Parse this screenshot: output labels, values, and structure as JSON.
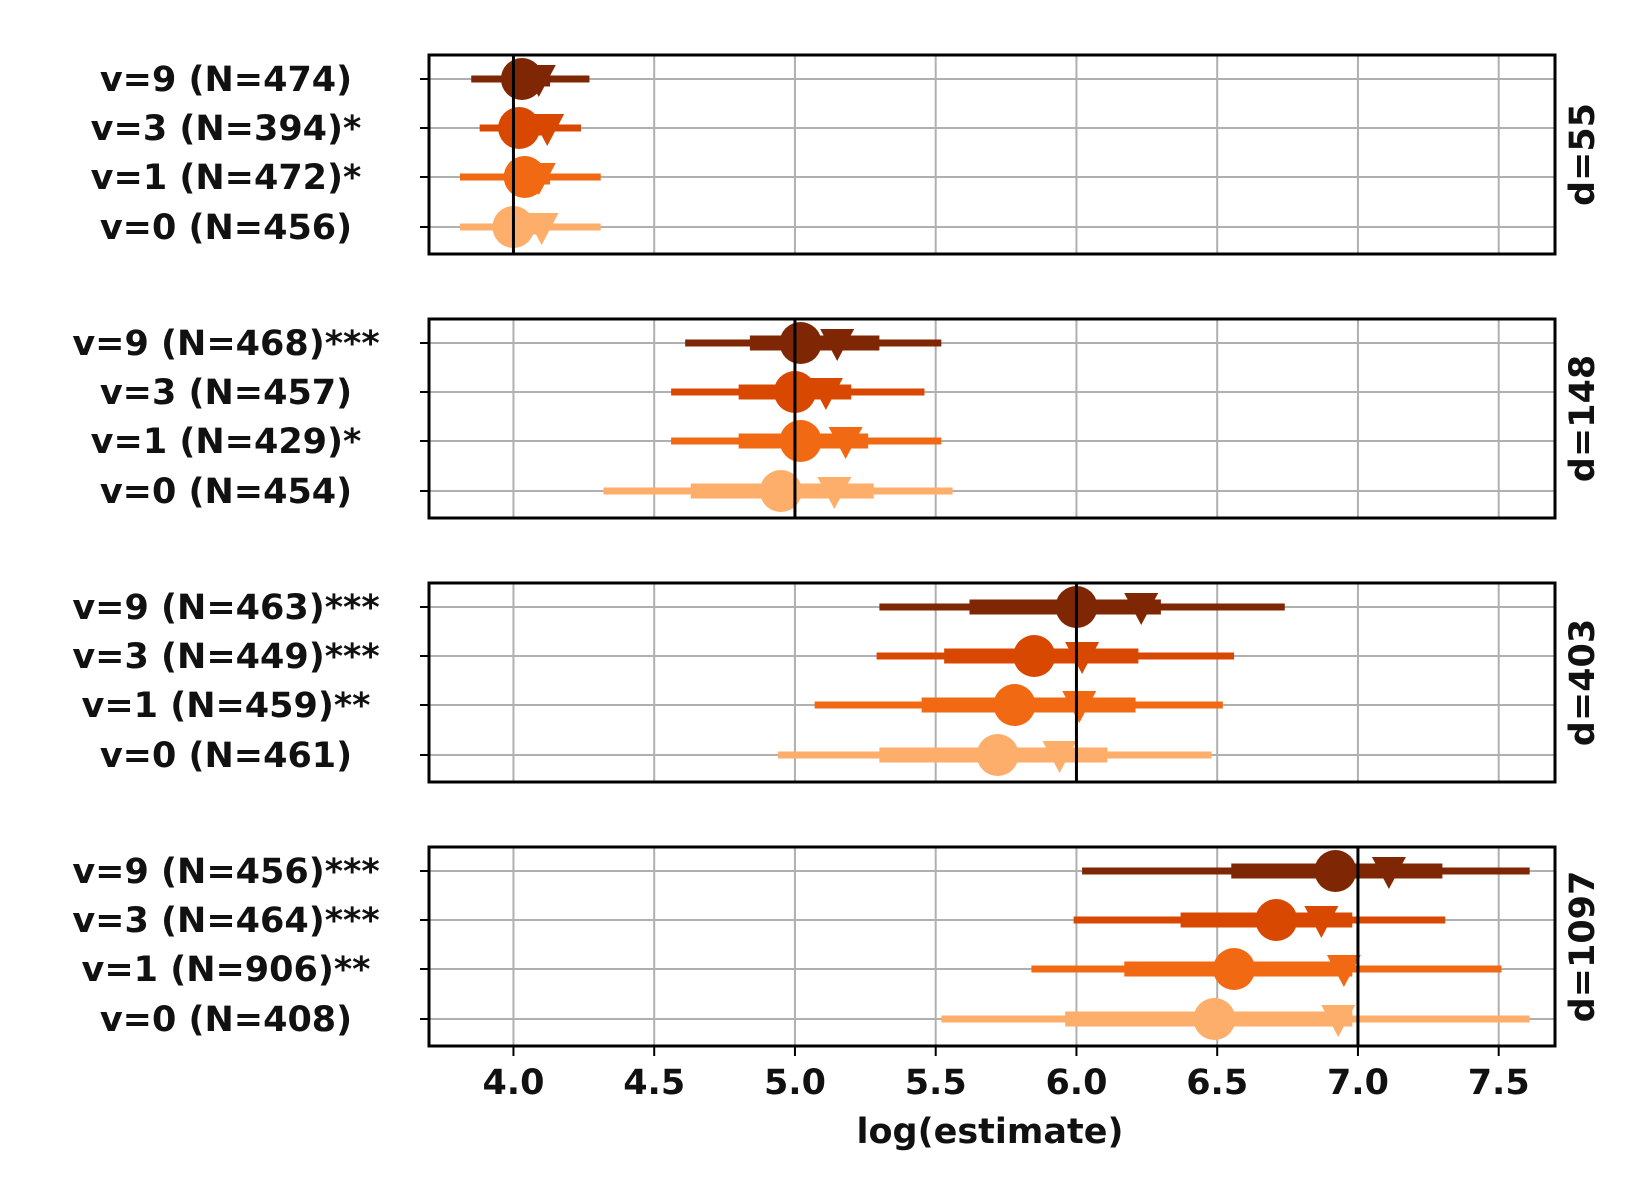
{
  "chart_data": {
    "type": "forest",
    "xlabel": "log(estimate)",
    "xlim": [
      3.7,
      7.7
    ],
    "xticks": [
      "4.0",
      "4.5",
      "5.0",
      "5.5",
      "6.0",
      "6.5",
      "7.0",
      "7.5"
    ],
    "grid": true,
    "colors": {
      "v9": "#7f2704",
      "v3": "#d94801",
      "v1": "#f16913",
      "v0": "#fdae6b"
    },
    "panels": [
      {
        "label": "d=55",
        "reference": 4.0,
        "rows": [
          {
            "label": "v=9 (N=474)",
            "color": "#7f2704",
            "circle": 4.03,
            "triangle": 4.09,
            "ci50": [
              3.98,
              4.13
            ],
            "ci95": [
              3.85,
              4.27
            ]
          },
          {
            "label": "v=3 (N=394)*",
            "color": "#d94801",
            "circle": 4.02,
            "triangle": 4.12,
            "ci50": [
              3.97,
              4.12
            ],
            "ci95": [
              3.88,
              4.24
            ]
          },
          {
            "label": "v=1 (N=472)*",
            "color": "#f16913",
            "circle": 4.04,
            "triangle": 4.09,
            "ci50": [
              3.97,
              4.13
            ],
            "ci95": [
              3.81,
              4.31
            ]
          },
          {
            "label": "v=0 (N=456)",
            "color": "#fdae6b",
            "circle": 4.0,
            "triangle": 4.1,
            "ci50": [
              3.94,
              4.1
            ],
            "ci95": [
              3.81,
              4.31
            ]
          }
        ]
      },
      {
        "label": "d=148",
        "reference": 5.0,
        "rows": [
          {
            "label": "v=9 (N=468)***",
            "color": "#7f2704",
            "circle": 5.02,
            "triangle": 5.15,
            "ci50": [
              4.84,
              5.3
            ],
            "ci95": [
              4.61,
              5.52
            ]
          },
          {
            "label": "v=3 (N=457)",
            "color": "#d94801",
            "circle": 5.0,
            "triangle": 5.11,
            "ci50": [
              4.8,
              5.2
            ],
            "ci95": [
              4.56,
              5.46
            ]
          },
          {
            "label": "v=1 (N=429)*",
            "color": "#f16913",
            "circle": 5.02,
            "triangle": 5.18,
            "ci50": [
              4.8,
              5.26
            ],
            "ci95": [
              4.56,
              5.52
            ]
          },
          {
            "label": "v=0 (N=454)",
            "color": "#fdae6b",
            "circle": 4.95,
            "triangle": 5.14,
            "ci50": [
              4.63,
              5.28
            ],
            "ci95": [
              4.32,
              5.56
            ]
          }
        ]
      },
      {
        "label": "d=403",
        "reference": 6.0,
        "rows": [
          {
            "label": "v=9 (N=463)***",
            "color": "#7f2704",
            "circle": 6.0,
            "triangle": 6.23,
            "ci50": [
              5.62,
              6.3
            ],
            "ci95": [
              5.3,
              6.74
            ]
          },
          {
            "label": "v=3 (N=449)***",
            "color": "#d94801",
            "circle": 5.85,
            "triangle": 6.02,
            "ci50": [
              5.53,
              6.22
            ],
            "ci95": [
              5.29,
              6.56
            ]
          },
          {
            "label": "v=1 (N=459)**",
            "color": "#f16913",
            "circle": 5.78,
            "triangle": 6.01,
            "ci50": [
              5.45,
              6.21
            ],
            "ci95": [
              5.07,
              6.52
            ]
          },
          {
            "label": "v=0 (N=461)",
            "color": "#fdae6b",
            "circle": 5.72,
            "triangle": 5.94,
            "ci50": [
              5.3,
              6.11
            ],
            "ci95": [
              4.94,
              6.48
            ]
          }
        ]
      },
      {
        "label": "d=1097",
        "reference": 7.0,
        "rows": [
          {
            "label": "v=9 (N=456)***",
            "color": "#7f2704",
            "circle": 6.92,
            "triangle": 7.11,
            "ci50": [
              6.55,
              7.3
            ],
            "ci95": [
              6.02,
              7.61
            ]
          },
          {
            "label": "v=3 (N=464)***",
            "color": "#d94801",
            "circle": 6.71,
            "triangle": 6.87,
            "ci50": [
              6.37,
              6.98
            ],
            "ci95": [
              5.99,
              7.31
            ]
          },
          {
            "label": "v=1 (N=906)**",
            "color": "#f16913",
            "circle": 6.56,
            "triangle": 6.95,
            "ci50": [
              6.17,
              6.98
            ],
            "ci95": [
              5.84,
              7.51
            ]
          },
          {
            "label": "v=0 (N=408)",
            "color": "#fdae6b",
            "circle": 6.49,
            "triangle": 6.93,
            "ci50": [
              5.96,
              6.98
            ],
            "ci95": [
              5.52,
              7.61
            ]
          }
        ]
      }
    ]
  }
}
